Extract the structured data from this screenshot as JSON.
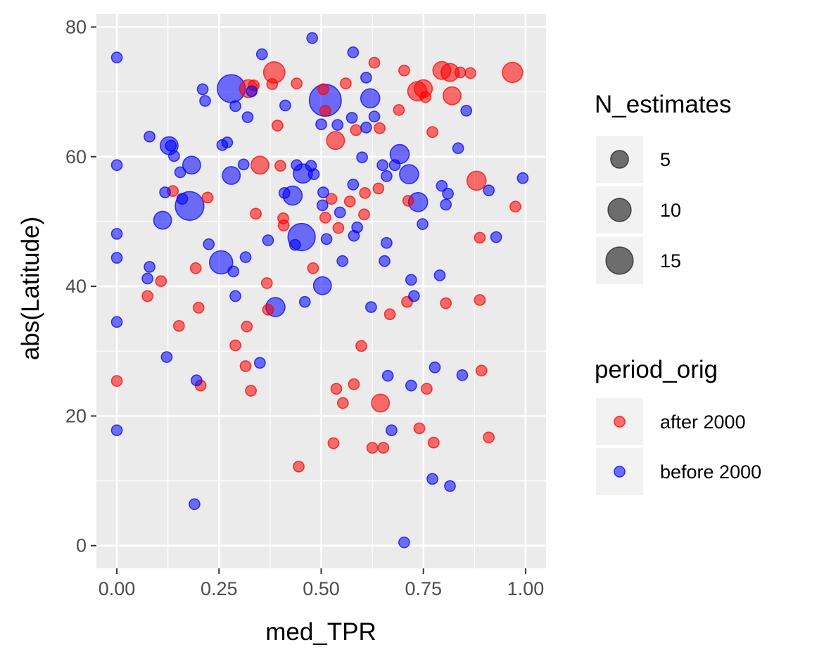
{
  "chart_data": {
    "type": "scatter",
    "xlabel": "med_TPR",
    "ylabel": "abs(Latitude)",
    "xlim": [
      -0.05,
      1.05
    ],
    "ylim": [
      -3.5,
      82
    ],
    "x_ticks": [
      {
        "value": 0.0,
        "label": "0.00"
      },
      {
        "value": 0.25,
        "label": "0.25"
      },
      {
        "value": 0.5,
        "label": "0.50"
      },
      {
        "value": 0.75,
        "label": "0.75"
      },
      {
        "value": 1.0,
        "label": "1.00"
      }
    ],
    "y_ticks": [
      {
        "value": 0,
        "label": "0"
      },
      {
        "value": 20,
        "label": "20"
      },
      {
        "value": 40,
        "label": "40"
      },
      {
        "value": 60,
        "label": "60"
      },
      {
        "value": 80,
        "label": "80"
      }
    ],
    "grid": true,
    "point_opacity": 0.55,
    "size_legend": {
      "title": "N_estimates",
      "placement": "right",
      "entries": [
        {
          "value": 5,
          "label": "5"
        },
        {
          "value": 10,
          "label": "10"
        },
        {
          "value": 15,
          "label": "15"
        }
      ]
    },
    "color_legend": {
      "title": "period_orig",
      "placement": "right",
      "entries": [
        {
          "label": "after 2000",
          "color": "#ff0000"
        },
        {
          "label": "before 2000",
          "color": "#0000ff"
        }
      ]
    },
    "series": [
      {
        "name": "after 2000",
        "color": "#ff0000",
        "points": [
          {
            "x": 0.0,
            "y": 25.4,
            "n": 1
          },
          {
            "x": 0.075,
            "y": 38.5,
            "n": 1
          },
          {
            "x": 0.108,
            "y": 40.8,
            "n": 1
          },
          {
            "x": 0.137,
            "y": 54.7,
            "n": 1
          },
          {
            "x": 0.152,
            "y": 33.9,
            "n": 1
          },
          {
            "x": 0.193,
            "y": 42.8,
            "n": 1
          },
          {
            "x": 0.2,
            "y": 36.7,
            "n": 1
          },
          {
            "x": 0.205,
            "y": 24.7,
            "n": 1
          },
          {
            "x": 0.222,
            "y": 53.7,
            "n": 1
          },
          {
            "x": 0.29,
            "y": 30.9,
            "n": 1
          },
          {
            "x": 0.315,
            "y": 27.7,
            "n": 1
          },
          {
            "x": 0.318,
            "y": 33.8,
            "n": 1
          },
          {
            "x": 0.328,
            "y": 23.9,
            "n": 1
          },
          {
            "x": 0.322,
            "y": 70.5,
            "n": 5
          },
          {
            "x": 0.335,
            "y": 71.0,
            "n": 1
          },
          {
            "x": 0.34,
            "y": 51.2,
            "n": 1
          },
          {
            "x": 0.35,
            "y": 58.7,
            "n": 5
          },
          {
            "x": 0.367,
            "y": 40.5,
            "n": 1
          },
          {
            "x": 0.37,
            "y": 36.4,
            "n": 1
          },
          {
            "x": 0.38,
            "y": 71.2,
            "n": 1
          },
          {
            "x": 0.385,
            "y": 73.0,
            "n": 8
          },
          {
            "x": 0.393,
            "y": 64.8,
            "n": 1
          },
          {
            "x": 0.4,
            "y": 58.6,
            "n": 1
          },
          {
            "x": 0.407,
            "y": 50.5,
            "n": 1
          },
          {
            "x": 0.408,
            "y": 49.4,
            "n": 1
          },
          {
            "x": 0.44,
            "y": 71.3,
            "n": 1
          },
          {
            "x": 0.445,
            "y": 12.2,
            "n": 1
          },
          {
            "x": 0.48,
            "y": 42.8,
            "n": 1
          },
          {
            "x": 0.505,
            "y": 70.4,
            "n": 1
          },
          {
            "x": 0.51,
            "y": 67.1,
            "n": 1
          },
          {
            "x": 0.51,
            "y": 50.6,
            "n": 1
          },
          {
            "x": 0.525,
            "y": 53.5,
            "n": 1
          },
          {
            "x": 0.53,
            "y": 15.8,
            "n": 1
          },
          {
            "x": 0.535,
            "y": 62.5,
            "n": 5
          },
          {
            "x": 0.537,
            "y": 24.2,
            "n": 1
          },
          {
            "x": 0.542,
            "y": 49.0,
            "n": 1
          },
          {
            "x": 0.553,
            "y": 22.0,
            "n": 1
          },
          {
            "x": 0.56,
            "y": 71.3,
            "n": 1
          },
          {
            "x": 0.57,
            "y": 53.1,
            "n": 1
          },
          {
            "x": 0.58,
            "y": 24.9,
            "n": 1
          },
          {
            "x": 0.585,
            "y": 64.1,
            "n": 1
          },
          {
            "x": 0.598,
            "y": 30.8,
            "n": 1
          },
          {
            "x": 0.605,
            "y": 51.1,
            "n": 1
          },
          {
            "x": 0.607,
            "y": 54.4,
            "n": 1
          },
          {
            "x": 0.625,
            "y": 15.1,
            "n": 1
          },
          {
            "x": 0.63,
            "y": 74.5,
            "n": 1
          },
          {
            "x": 0.64,
            "y": 55.1,
            "n": 1
          },
          {
            "x": 0.643,
            "y": 64.4,
            "n": 1
          },
          {
            "x": 0.645,
            "y": 22.0,
            "n": 5
          },
          {
            "x": 0.652,
            "y": 15.1,
            "n": 1
          },
          {
            "x": 0.668,
            "y": 35.7,
            "n": 1
          },
          {
            "x": 0.69,
            "y": 67.2,
            "n": 1
          },
          {
            "x": 0.703,
            "y": 73.3,
            "n": 1
          },
          {
            "x": 0.71,
            "y": 37.6,
            "n": 1
          },
          {
            "x": 0.713,
            "y": 53.2,
            "n": 1
          },
          {
            "x": 0.74,
            "y": 18.1,
            "n": 1
          },
          {
            "x": 0.735,
            "y": 70.1,
            "n": 6
          },
          {
            "x": 0.75,
            "y": 70.5,
            "n": 5
          },
          {
            "x": 0.755,
            "y": 69.2,
            "n": 1
          },
          {
            "x": 0.758,
            "y": 24.2,
            "n": 1
          },
          {
            "x": 0.772,
            "y": 63.8,
            "n": 1
          },
          {
            "x": 0.775,
            "y": 15.9,
            "n": 1
          },
          {
            "x": 0.795,
            "y": 73.3,
            "n": 5
          },
          {
            "x": 0.805,
            "y": 37.4,
            "n": 1
          },
          {
            "x": 0.815,
            "y": 73.0,
            "n": 5
          },
          {
            "x": 0.82,
            "y": 69.4,
            "n": 5
          },
          {
            "x": 0.84,
            "y": 73.0,
            "n": 1
          },
          {
            "x": 0.865,
            "y": 72.9,
            "n": 1
          },
          {
            "x": 0.88,
            "y": 56.3,
            "n": 6
          },
          {
            "x": 0.888,
            "y": 47.5,
            "n": 1
          },
          {
            "x": 0.888,
            "y": 37.9,
            "n": 1
          },
          {
            "x": 0.892,
            "y": 27.0,
            "n": 1
          },
          {
            "x": 0.91,
            "y": 16.7,
            "n": 1
          },
          {
            "x": 0.968,
            "y": 73.0,
            "n": 7
          },
          {
            "x": 0.975,
            "y": 52.3,
            "n": 1
          }
        ]
      },
      {
        "name": "before 2000",
        "color": "#0000ff",
        "points": [
          {
            "x": 0.0,
            "y": 75.3,
            "n": 1
          },
          {
            "x": 0.0,
            "y": 58.7,
            "n": 1
          },
          {
            "x": 0.0,
            "y": 48.1,
            "n": 1
          },
          {
            "x": 0.0,
            "y": 44.4,
            "n": 1
          },
          {
            "x": 0.0,
            "y": 34.5,
            "n": 1
          },
          {
            "x": 0.0,
            "y": 17.8,
            "n": 1
          },
          {
            "x": 0.075,
            "y": 41.2,
            "n": 1
          },
          {
            "x": 0.08,
            "y": 43.0,
            "n": 1
          },
          {
            "x": 0.08,
            "y": 63.1,
            "n": 1
          },
          {
            "x": 0.112,
            "y": 50.2,
            "n": 5
          },
          {
            "x": 0.118,
            "y": 54.5,
            "n": 1
          },
          {
            "x": 0.122,
            "y": 29.1,
            "n": 1
          },
          {
            "x": 0.128,
            "y": 61.7,
            "n": 5
          },
          {
            "x": 0.132,
            "y": 61.7,
            "n": 1
          },
          {
            "x": 0.14,
            "y": 60.1,
            "n": 1
          },
          {
            "x": 0.155,
            "y": 57.6,
            "n": 1
          },
          {
            "x": 0.16,
            "y": 53.5,
            "n": 1
          },
          {
            "x": 0.178,
            "y": 52.4,
            "n": 17
          },
          {
            "x": 0.183,
            "y": 58.7,
            "n": 5
          },
          {
            "x": 0.19,
            "y": 6.4,
            "n": 1
          },
          {
            "x": 0.195,
            "y": 25.5,
            "n": 1
          },
          {
            "x": 0.21,
            "y": 70.4,
            "n": 1
          },
          {
            "x": 0.216,
            "y": 68.6,
            "n": 1
          },
          {
            "x": 0.225,
            "y": 46.5,
            "n": 1
          },
          {
            "x": 0.255,
            "y": 43.7,
            "n": 10
          },
          {
            "x": 0.258,
            "y": 61.8,
            "n": 1
          },
          {
            "x": 0.27,
            "y": 62.2,
            "n": 1
          },
          {
            "x": 0.28,
            "y": 70.5,
            "n": 16
          },
          {
            "x": 0.28,
            "y": 57.1,
            "n": 5
          },
          {
            "x": 0.285,
            "y": 42.3,
            "n": 1
          },
          {
            "x": 0.29,
            "y": 38.5,
            "n": 1
          },
          {
            "x": 0.29,
            "y": 67.8,
            "n": 1
          },
          {
            "x": 0.31,
            "y": 58.8,
            "n": 1
          },
          {
            "x": 0.315,
            "y": 44.5,
            "n": 1
          },
          {
            "x": 0.32,
            "y": 66.1,
            "n": 1
          },
          {
            "x": 0.33,
            "y": 70.1,
            "n": 1
          },
          {
            "x": 0.35,
            "y": 28.2,
            "n": 1
          },
          {
            "x": 0.355,
            "y": 75.8,
            "n": 1
          },
          {
            "x": 0.37,
            "y": 47.1,
            "n": 1
          },
          {
            "x": 0.388,
            "y": 36.8,
            "n": 6
          },
          {
            "x": 0.41,
            "y": 54.4,
            "n": 1
          },
          {
            "x": 0.412,
            "y": 67.9,
            "n": 1
          },
          {
            "x": 0.43,
            "y": 54.0,
            "n": 6
          },
          {
            "x": 0.436,
            "y": 46.4,
            "n": 1
          },
          {
            "x": 0.44,
            "y": 58.7,
            "n": 1
          },
          {
            "x": 0.452,
            "y": 47.6,
            "n": 15
          },
          {
            "x": 0.455,
            "y": 57.4,
            "n": 6
          },
          {
            "x": 0.46,
            "y": 37.6,
            "n": 1
          },
          {
            "x": 0.475,
            "y": 58.6,
            "n": 1
          },
          {
            "x": 0.478,
            "y": 78.3,
            "n": 1
          },
          {
            "x": 0.482,
            "y": 57.3,
            "n": 1
          },
          {
            "x": 0.5,
            "y": 65.0,
            "n": 1
          },
          {
            "x": 0.503,
            "y": 40.1,
            "n": 5
          },
          {
            "x": 0.503,
            "y": 52.5,
            "n": 1
          },
          {
            "x": 0.505,
            "y": 54.5,
            "n": 1
          },
          {
            "x": 0.51,
            "y": 68.7,
            "n": 22
          },
          {
            "x": 0.513,
            "y": 47.3,
            "n": 1
          },
          {
            "x": 0.54,
            "y": 64.9,
            "n": 1
          },
          {
            "x": 0.546,
            "y": 51.4,
            "n": 1
          },
          {
            "x": 0.552,
            "y": 43.9,
            "n": 1
          },
          {
            "x": 0.575,
            "y": 66.0,
            "n": 1
          },
          {
            "x": 0.578,
            "y": 76.1,
            "n": 1
          },
          {
            "x": 0.578,
            "y": 55.7,
            "n": 1
          },
          {
            "x": 0.58,
            "y": 47.8,
            "n": 1
          },
          {
            "x": 0.588,
            "y": 49.1,
            "n": 1
          },
          {
            "x": 0.6,
            "y": 59.9,
            "n": 1
          },
          {
            "x": 0.61,
            "y": 72.2,
            "n": 1
          },
          {
            "x": 0.61,
            "y": 64.5,
            "n": 1
          },
          {
            "x": 0.62,
            "y": 69.0,
            "n": 6
          },
          {
            "x": 0.622,
            "y": 36.8,
            "n": 1
          },
          {
            "x": 0.63,
            "y": 66.2,
            "n": 1
          },
          {
            "x": 0.65,
            "y": 58.7,
            "n": 1
          },
          {
            "x": 0.655,
            "y": 43.9,
            "n": 1
          },
          {
            "x": 0.66,
            "y": 57.0,
            "n": 1
          },
          {
            "x": 0.66,
            "y": 46.7,
            "n": 1
          },
          {
            "x": 0.663,
            "y": 26.2,
            "n": 1
          },
          {
            "x": 0.672,
            "y": 17.8,
            "n": 1
          },
          {
            "x": 0.68,
            "y": 58.7,
            "n": 1
          },
          {
            "x": 0.692,
            "y": 60.4,
            "n": 6
          },
          {
            "x": 0.703,
            "y": 0.5,
            "n": 1
          },
          {
            "x": 0.715,
            "y": 57.3,
            "n": 6
          },
          {
            "x": 0.72,
            "y": 41.0,
            "n": 1
          },
          {
            "x": 0.72,
            "y": 24.7,
            "n": 1
          },
          {
            "x": 0.727,
            "y": 38.5,
            "n": 1
          },
          {
            "x": 0.737,
            "y": 53.0,
            "n": 6
          },
          {
            "x": 0.748,
            "y": 49.6,
            "n": 1
          },
          {
            "x": 0.772,
            "y": 10.3,
            "n": 1
          },
          {
            "x": 0.778,
            "y": 27.5,
            "n": 1
          },
          {
            "x": 0.79,
            "y": 41.7,
            "n": 1
          },
          {
            "x": 0.795,
            "y": 55.5,
            "n": 1
          },
          {
            "x": 0.805,
            "y": 52.6,
            "n": 1
          },
          {
            "x": 0.81,
            "y": 54.3,
            "n": 1
          },
          {
            "x": 0.815,
            "y": 9.2,
            "n": 1
          },
          {
            "x": 0.835,
            "y": 61.3,
            "n": 1
          },
          {
            "x": 0.845,
            "y": 26.3,
            "n": 1
          },
          {
            "x": 0.855,
            "y": 67.1,
            "n": 1
          },
          {
            "x": 0.91,
            "y": 54.8,
            "n": 1
          },
          {
            "x": 0.928,
            "y": 47.6,
            "n": 1
          },
          {
            "x": 0.993,
            "y": 56.7,
            "n": 1
          }
        ]
      }
    ]
  }
}
